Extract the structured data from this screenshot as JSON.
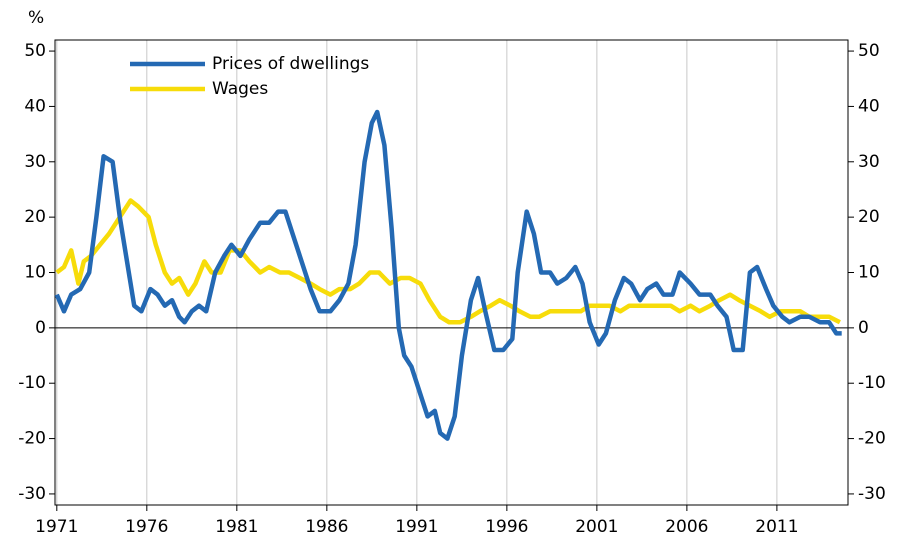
{
  "chart_data": {
    "type": "line",
    "y_label": "%",
    "xlim": [
      1970.9,
      2014.95
    ],
    "xticks": [
      1971,
      1976,
      1981,
      1986,
      1991,
      1996,
      2001,
      2006,
      2011
    ],
    "ylim": [
      -32,
      52
    ],
    "yticks": [
      -30,
      -20,
      -10,
      0,
      10,
      20,
      30,
      40,
      50
    ],
    "y2lim": [
      -32,
      52
    ],
    "y2ticks": [
      -30,
      -20,
      -10,
      0,
      10,
      20,
      30,
      40,
      50
    ],
    "grid": true,
    "zero_line": true,
    "legend": "upper-left",
    "series": [
      {
        "name": "Prices of dwellings",
        "color": "#2469b3",
        "x": [
          1971.0,
          1971.4,
          1971.8,
          1972.3,
          1972.8,
          1973.2,
          1973.6,
          1974.1,
          1974.5,
          1974.9,
          1975.3,
          1975.7,
          1976.2,
          1976.6,
          1977.0,
          1977.4,
          1977.8,
          1978.1,
          1978.5,
          1978.9,
          1979.3,
          1979.8,
          1980.3,
          1980.7,
          1981.2,
          1981.7,
          1982.3,
          1982.8,
          1983.3,
          1983.7,
          1984.1,
          1984.5,
          1985.1,
          1985.6,
          1986.2,
          1986.7,
          1987.2,
          1987.6,
          1988.1,
          1988.5,
          1988.8,
          1989.2,
          1989.6,
          1990.0,
          1990.3,
          1990.7,
          1991.2,
          1991.6,
          1992.0,
          1992.3,
          1992.7,
          1993.1,
          1993.5,
          1994.0,
          1994.4,
          1994.8,
          1995.3,
          1995.8,
          1996.3,
          1996.6,
          1997.1,
          1997.5,
          1997.9,
          1998.4,
          1998.8,
          1999.3,
          1999.8,
          2000.2,
          2000.6,
          2001.1,
          2001.5,
          2002.0,
          2002.5,
          2002.9,
          2003.4,
          2003.8,
          2004.3,
          2004.7,
          2005.2,
          2005.6,
          2006.2,
          2006.7,
          2007.3,
          2007.7,
          2008.2,
          2008.6,
          2009.1,
          2009.5,
          2009.9,
          2010.4,
          2010.8,
          2011.3,
          2011.7,
          2012.3,
          2012.8,
          2013.4,
          2013.9,
          2014.3,
          2014.6
        ],
        "values": [
          6,
          3,
          6,
          7,
          10,
          20,
          31,
          30,
          20,
          12,
          4,
          3,
          7,
          6,
          4,
          5,
          2,
          1,
          3,
          4,
          3,
          10,
          13,
          15,
          13,
          16,
          19,
          19,
          21,
          21,
          17,
          13,
          7,
          3,
          3,
          5,
          8,
          15,
          30,
          37,
          39,
          33,
          18,
          0,
          -5,
          -7,
          -12,
          -16,
          -15,
          -19,
          -20,
          -16,
          -5,
          5,
          9,
          3,
          -4,
          -4,
          -2,
          10,
          21,
          17,
          10,
          10,
          8,
          9,
          11,
          8,
          1,
          -3,
          -1,
          5,
          9,
          8,
          5,
          7,
          8,
          6,
          6,
          10,
          8,
          6,
          6,
          4,
          2,
          -4,
          -4,
          10,
          11,
          7,
          4,
          2,
          1,
          2,
          2,
          1,
          1,
          -1,
          -1
        ]
      },
      {
        "name": "Wages",
        "color": "#f7dc0a",
        "x": [
          1971.0,
          1971.4,
          1971.8,
          1972.2,
          1972.5,
          1972.9,
          1973.4,
          1973.9,
          1974.5,
          1975.1,
          1975.5,
          1976.1,
          1976.5,
          1977.0,
          1977.4,
          1977.8,
          1978.3,
          1978.7,
          1979.2,
          1979.6,
          1980.1,
          1980.6,
          1981.2,
          1981.7,
          1982.3,
          1982.8,
          1983.4,
          1983.9,
          1984.5,
          1985.1,
          1985.6,
          1986.2,
          1986.7,
          1987.3,
          1987.8,
          1988.4,
          1988.9,
          1989.5,
          1990.1,
          1990.6,
          1991.2,
          1991.7,
          1992.3,
          1992.8,
          1993.4,
          1994.0,
          1994.5,
          1995.1,
          1995.6,
          1996.2,
          1996.7,
          1997.3,
          1997.8,
          1998.4,
          1998.9,
          1999.5,
          2000.1,
          2000.6,
          2001.2,
          2001.7,
          2002.3,
          2002.8,
          2003.4,
          2003.9,
          2004.5,
          2005.1,
          2005.6,
          2006.2,
          2006.7,
          2007.3,
          2007.8,
          2008.4,
          2008.9,
          2009.5,
          2010.1,
          2010.6,
          2011.2,
          2011.7,
          2012.3,
          2012.8,
          2013.4,
          2013.9,
          2014.5
        ],
        "values": [
          10,
          11,
          14,
          8,
          12,
          13,
          15,
          17,
          20,
          23,
          22,
          20,
          15,
          10,
          8,
          9,
          6,
          8,
          12,
          10,
          10,
          14,
          14,
          12,
          10,
          11,
          10,
          10,
          9,
          8,
          7,
          6,
          7,
          7,
          8,
          10,
          10,
          8,
          9,
          9,
          8,
          5,
          2,
          1,
          1,
          2,
          3,
          4,
          5,
          4,
          3,
          2,
          2,
          3,
          3,
          3,
          3,
          4,
          4,
          4,
          3,
          4,
          4,
          4,
          4,
          4,
          3,
          4,
          3,
          4,
          5,
          6,
          5,
          4,
          3,
          2,
          3,
          3,
          3,
          2,
          2,
          2,
          1
        ]
      }
    ]
  }
}
